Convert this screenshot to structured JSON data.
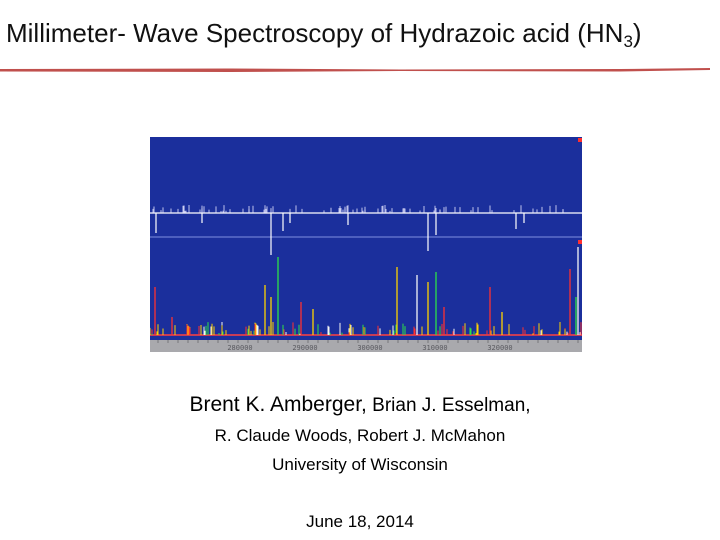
{
  "slide": {
    "title_main": "Millimeter- Wave Spectroscopy of Hydrazoic acid (HN",
    "title_sub": "3",
    "title_close": ")",
    "accent_color": "#c0504d"
  },
  "spectrum_image": {
    "background_color": "#1b2f9c",
    "tick_labels": [
      "280000",
      "290000",
      "300000",
      "310000",
      "320000"
    ]
  },
  "authors": {
    "lead": "Brent K. Amberger,",
    "coauthor_1": "Brian J. Esselman,",
    "line_2": "R. Claude Woods, Robert J. McMahon",
    "affiliation": "University of Wisconsin"
  },
  "date": "June 18, 2014"
}
